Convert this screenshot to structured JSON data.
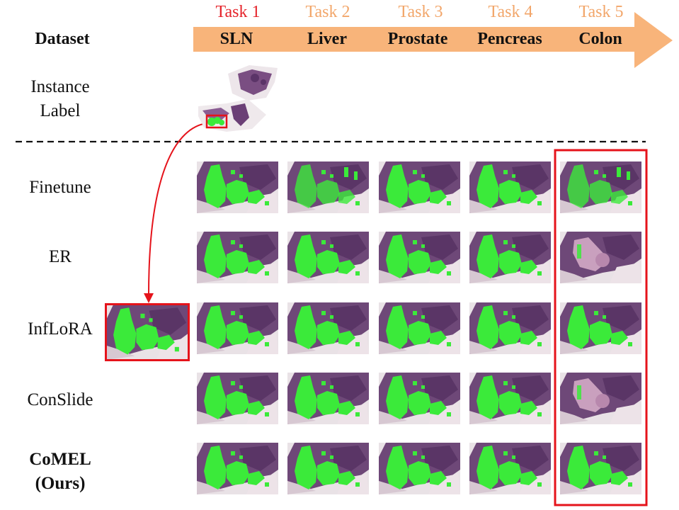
{
  "header": {
    "dataset_label": "Dataset",
    "arrow_color": "#F8B47A",
    "tasks": [
      {
        "task": "Task 1",
        "dataset": "SLN",
        "color": "#E5232A"
      },
      {
        "task": "Task 2",
        "dataset": "Liver",
        "color": "#F2A66A"
      },
      {
        "task": "Task 3",
        "dataset": "Prostate",
        "color": "#F2A66A"
      },
      {
        "task": "Task 4",
        "dataset": "Pencreas",
        "color": "#F2A66A"
      },
      {
        "task": "Task 5",
        "dataset": "Colon",
        "color": "#F2A66A"
      }
    ]
  },
  "instance_label": {
    "line1": "Instance",
    "line2": "Label"
  },
  "methods": [
    {
      "name": "Finetune"
    },
    {
      "name": "ER"
    },
    {
      "name": "InfLoRA"
    },
    {
      "name": "ConSlide"
    },
    {
      "name": "CoMEL",
      "name2": "(Ours)"
    }
  ],
  "colors": {
    "highlight": "#E5131B",
    "tissue": "#6E4878",
    "mask": "#3BEA3A",
    "background": "#E9E2E6"
  }
}
